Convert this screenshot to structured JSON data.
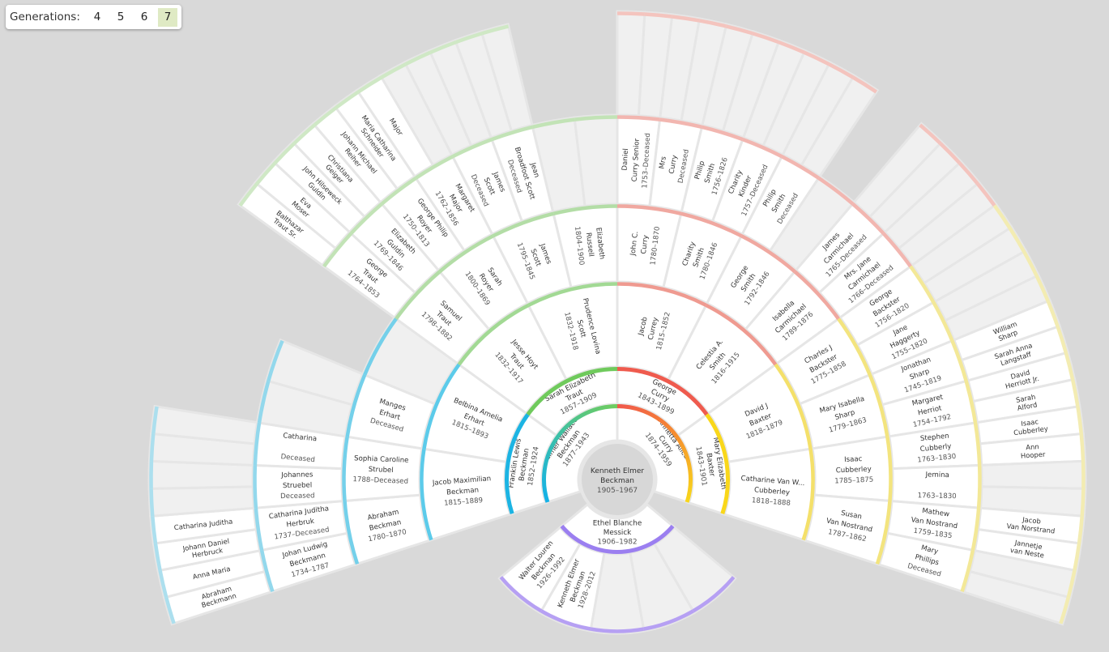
{
  "controls": {
    "label": "Generations:",
    "options": [
      "4",
      "5",
      "6",
      "7"
    ],
    "selected": "7"
  },
  "colors": {
    "background": "#d9d9d9",
    "filled_slot": "#ffffff",
    "empty_slot": "#f0f0f0",
    "slot_border": "#e6e6e6",
    "center_fill": "#d7d7d7",
    "center_border": "#e6e6e6",
    "name_text": "#333333",
    "dates_text": "#555555",
    "selected_generation_bg": "#dfeac4",
    "gen1_father_gradient": [
      "#14b1e8",
      "#3bc0a8",
      "#70cc5e"
    ],
    "gen1_mother_gradient": [
      "#f0584c",
      "#f6902e",
      "#f8d71b"
    ],
    "branch": {
      "blue": [
        "#1cb4e3",
        "#5ccbea",
        "#74d0ea",
        "#93d8ec",
        "#acdfee"
      ],
      "green": [
        "#6fca5c",
        "#a2d994",
        "#b3dda6",
        "#c2e3b6",
        "#cfe8c5"
      ],
      "red": [
        "#ef5b4e",
        "#ef9a90",
        "#f0a8a0",
        "#f2b6b0",
        "#f4c4be"
      ],
      "yellow": [
        "#f9d71a",
        "#f4e06a",
        "#f3e47e",
        "#f3e897",
        "#f3ecb2"
      ]
    },
    "spouse_arc": "#9b7ff0",
    "children_arc": "#b6a0f3"
  },
  "fan": {
    "center": {
      "name": [
        "Kenneth Elmer",
        "Beckman"
      ],
      "dates": "1905–1967"
    },
    "generations": {
      "g1": [
        {
          "name": [
            "Elmer Wallace",
            "Beckman"
          ],
          "dates": "1877–1943"
        },
        {
          "name": [
            "Annetta Alice",
            "Curry"
          ],
          "dates": "1874–1959"
        }
      ],
      "g2": [
        {
          "name": [
            "Franklin Lewis",
            "Beckman"
          ],
          "dates": "1852–1924"
        },
        {
          "name": [
            "Sarah Elizabeth",
            "Traut"
          ],
          "dates": "1857–1909"
        },
        {
          "name": [
            "George",
            "Curry"
          ],
          "dates": "1843–1899"
        },
        {
          "name": [
            "Mary Elizabeth",
            "Baxter"
          ],
          "dates": "1843–1901"
        }
      ],
      "g3": [
        {
          "name": [
            "Jacob Maximilian",
            "Beckman"
          ],
          "dates": "1815–1889"
        },
        {
          "name": [
            "Belbina Amelia",
            "Erhart"
          ],
          "dates": "1815–1893"
        },
        {
          "name": [
            "Jesse Hoyt",
            "Traut"
          ],
          "dates": "1832–1917"
        },
        {
          "name": [
            "Prudence Lovina",
            "Scott"
          ],
          "dates": "1832–1918"
        },
        {
          "name": [
            "Jacob",
            "Currey"
          ],
          "dates": "1815–1852"
        },
        {
          "name": [
            "Celestia A.",
            "Smith"
          ],
          "dates": "1816–1915"
        },
        {
          "name": [
            "David J",
            "Baxter"
          ],
          "dates": "1818–1879"
        },
        {
          "name": [
            "Catharine Van W...",
            "Cubberley"
          ],
          "dates": "1818–1888"
        }
      ],
      "g4": [
        {
          "name": [
            "Abraham",
            "Beckman"
          ],
          "dates": "1780–1870"
        },
        {
          "name": [
            "Sophia Caroline",
            "Strubel"
          ],
          "dates": "1788–Deceased"
        },
        {
          "name": [
            "Manges",
            "Erhart"
          ],
          "dates": "Deceased"
        },
        {
          "empty": true
        },
        {
          "name": [
            "Samuel",
            "Traut"
          ],
          "dates": "1798–1882"
        },
        {
          "name": [
            "Sarah",
            "Royer"
          ],
          "dates": "1800–1869"
        },
        {
          "name": [
            "James",
            "Scott"
          ],
          "dates": "1795–1845"
        },
        {
          "name": [
            "Elizabeth",
            "Russell"
          ],
          "dates": "1804–1900"
        },
        {
          "name": [
            "John C.",
            "Curry"
          ],
          "dates": "1780–1870"
        },
        {
          "name": [
            "Charity",
            "Smith"
          ],
          "dates": "1780–1846"
        },
        {
          "name": [
            "George",
            "Smith"
          ],
          "dates": "1792–1846"
        },
        {
          "name": [
            "Isabella",
            "Carmichael"
          ],
          "dates": "1789–1876"
        },
        {
          "name": [
            "Charles J",
            "Backster"
          ],
          "dates": "1775–1858"
        },
        {
          "name": [
            "Mary Isabella",
            "Sharp"
          ],
          "dates": "1779–1863"
        },
        {
          "name": [
            "Isaac",
            "Cubberley"
          ],
          "dates": "1785–1875"
        },
        {
          "name": [
            "Susan",
            "Van Nostrand"
          ],
          "dates": "1787–1862"
        }
      ],
      "g5": [
        {
          "name": [
            "Johan Ludwig",
            "Beckmann"
          ],
          "dates": "1734–1787"
        },
        {
          "name": [
            "Catharina Juditha",
            "Herbruk"
          ],
          "dates": "1737–Deceased"
        },
        {
          "name": [
            "Johannes",
            "Struebel"
          ],
          "dates": "Deceased"
        },
        {
          "name": [
            "Catharina",
            ""
          ],
          "dates": "Deceased"
        },
        {
          "empty": true
        },
        {
          "empty": true
        },
        null,
        null,
        {
          "name": [
            "George",
            "Traut"
          ],
          "dates": "1764–1853"
        },
        {
          "name": [
            "Elizabeth",
            "Guldin"
          ],
          "dates": "1769–1846"
        },
        {
          "name": [
            "George Philip",
            "Royer"
          ],
          "dates": "1750–1813"
        },
        {
          "name": [
            "Margaret",
            "Major"
          ],
          "dates": "1762–1856"
        },
        {
          "name": [
            "James",
            "Scott"
          ],
          "dates": "Deceased"
        },
        {
          "name": [
            "Jean",
            "Broadfoot Scott"
          ],
          "dates": "Deceased"
        },
        {
          "empty": true
        },
        {
          "empty": true
        },
        {
          "name": [
            "Daniel",
            "Curry Senior"
          ],
          "dates": "1753–Deceased"
        },
        {
          "name": [
            "Mrs",
            "Curry"
          ],
          "dates": "Deceased"
        },
        {
          "name": [
            "Philip",
            "Smith"
          ],
          "dates": "1756–1826"
        },
        {
          "name": [
            "Charity",
            "Kinder"
          ],
          "dates": "1757–Deceased"
        },
        {
          "name": [
            "Philip",
            "Smith"
          ],
          "dates": "Deceased"
        },
        {
          "empty": true
        },
        {
          "name": [
            "James",
            "Carmichael"
          ],
          "dates": "1765–Deceased"
        },
        {
          "name": [
            "Mrs. Jane",
            "Carmichael"
          ],
          "dates": "1766–Deceased"
        },
        {
          "name": [
            "George",
            "Backster"
          ],
          "dates": "1756–1820"
        },
        {
          "name": [
            "Jane",
            "Haggerty"
          ],
          "dates": "1755–1820"
        },
        {
          "name": [
            "Jonathan",
            "Sharp"
          ],
          "dates": "1745–1819"
        },
        {
          "name": [
            "Margaret",
            "Herriot"
          ],
          "dates": "1754–1792"
        },
        {
          "name": [
            "Stephen",
            "Cubberly"
          ],
          "dates": "1763–1830"
        },
        {
          "name": [
            "Jemina",
            ""
          ],
          "dates": "1763–1830"
        },
        {
          "name": [
            "Mathew",
            "Van Nostrand"
          ],
          "dates": "1759–1835"
        },
        {
          "name": [
            "Mary",
            "Phillips"
          ],
          "dates": "Deceased"
        }
      ],
      "g6": [
        {
          "name": [
            "Abraham",
            "Beckmann"
          ]
        },
        {
          "name": [
            "Anna Maria"
          ]
        },
        {
          "name": [
            "Johann Daniel",
            "Herbruck"
          ]
        },
        {
          "name": [
            "Catharina Juditha"
          ]
        },
        {
          "empty": true
        },
        {
          "empty": true
        },
        {
          "empty": true
        },
        {
          "empty": true
        },
        null,
        null,
        null,
        null,
        null,
        null,
        null,
        null,
        {
          "name": [
            "Balthazar",
            "Traut Sr."
          ]
        },
        {
          "name": [
            "Eva",
            "Moser"
          ]
        },
        {
          "name": [
            "John Hilseweck",
            "Guldin"
          ]
        },
        {
          "name": [
            "Christiana",
            "Geiger"
          ]
        },
        {
          "name": [
            "Johann Michael",
            "Reiher"
          ]
        },
        {
          "name": [
            "Maria Catharina",
            "Schneider"
          ]
        },
        {
          "name": [
            "Major"
          ]
        },
        {
          "empty": true
        },
        {
          "empty": true
        },
        {
          "empty": true
        },
        {
          "empty": true
        },
        {
          "empty": true
        },
        null,
        null,
        null,
        null,
        {
          "empty": true
        },
        {
          "empty": true
        },
        {
          "empty": true
        },
        {
          "empty": true
        },
        {
          "empty": true
        },
        {
          "empty": true
        },
        {
          "empty": true
        },
        {
          "empty": true
        },
        {
          "empty": true
        },
        {
          "empty": true
        },
        null,
        null,
        {
          "empty": true
        },
        {
          "empty": true
        },
        {
          "empty": true
        },
        {
          "empty": true
        },
        {
          "empty": true
        },
        {
          "empty": true
        },
        {
          "empty": true
        },
        {
          "empty": true
        },
        {
          "name": [
            "William",
            "Sharp"
          ]
        },
        {
          "name": [
            "Sarah Anna",
            "Langstaff"
          ]
        },
        {
          "name": [
            "David",
            "Herriott Jr."
          ]
        },
        {
          "name": [
            "Sarah",
            "Alford"
          ]
        },
        {
          "name": [
            "Isaac",
            "Cubberley"
          ]
        },
        {
          "name": [
            "Ann",
            "Hooper"
          ]
        },
        {
          "empty": true
        },
        {
          "empty": true
        },
        {
          "name": [
            "Jacob",
            "Van Norstrand"
          ]
        },
        {
          "name": [
            "Jannetje",
            "van Neste"
          ]
        },
        {
          "empty": true
        },
        {
          "empty": true
        }
      ]
    },
    "descendants": {
      "spouse": {
        "name": [
          "Ethel Blanche",
          "Messick"
        ],
        "dates": "1906–1982"
      },
      "children": [
        {
          "name": [
            "Walter Louren",
            "Beckman"
          ],
          "dates": "1926–1992"
        },
        {
          "name": [
            "Kenneth Elmer",
            "Beckman"
          ],
          "dates": "1928–2012"
        },
        {
          "empty": true
        },
        {
          "empty": true
        },
        {
          "empty": true
        }
      ]
    }
  }
}
